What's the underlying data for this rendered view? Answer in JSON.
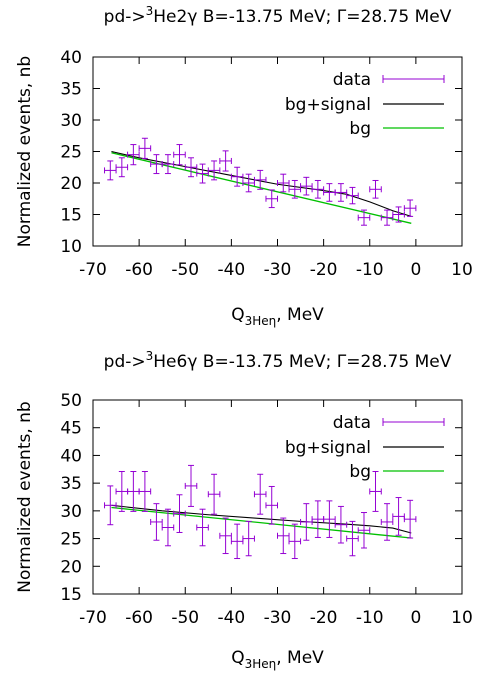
{
  "chart_data": [
    {
      "type": "scatter",
      "title_main": "pd->",
      "title_sup": "3",
      "title_rest": "He2γ B=-13.75 MeV; Γ=28.75 MeV",
      "ylabel": "Normalized events, nb",
      "xlabel_main": "Q",
      "xlabel_sub": "3Heη",
      "xlabel_rest": ", MeV",
      "xlim": [
        -70,
        10
      ],
      "ylim": [
        10,
        40
      ],
      "xticks": [
        -70,
        -60,
        -50,
        -40,
        -30,
        -20,
        -10,
        0,
        10
      ],
      "yticks": [
        10,
        15,
        20,
        25,
        30,
        35,
        40
      ],
      "legend": [
        "data",
        "bg+signal",
        "bg"
      ],
      "colors": {
        "data": "#9400d3",
        "signal": "#000000",
        "bg": "#00c000"
      },
      "x_error": 1.25,
      "data": {
        "x": [
          -66.25,
          -63.75,
          -61.25,
          -58.75,
          -56.25,
          -53.75,
          -51.25,
          -48.75,
          -46.25,
          -43.75,
          -41.25,
          -38.75,
          -36.25,
          -33.75,
          -31.25,
          -28.75,
          -26.25,
          -23.75,
          -21.25,
          -18.75,
          -16.25,
          -13.75,
          -11.25,
          -8.75,
          -6.25,
          -3.75,
          -1.25
        ],
        "y": [
          22.0,
          22.5,
          24.5,
          25.5,
          23.0,
          23.0,
          24.5,
          22.5,
          21.5,
          22.0,
          23.5,
          21.0,
          20.0,
          20.5,
          17.5,
          20.0,
          19.0,
          19.5,
          19.0,
          18.5,
          18.5,
          18.0,
          14.5,
          19.0,
          14.5,
          15.0,
          16.0
        ],
        "yerr": [
          1.5,
          1.5,
          1.6,
          1.6,
          1.5,
          1.5,
          1.6,
          1.5,
          1.5,
          1.5,
          1.6,
          1.5,
          1.4,
          1.5,
          1.4,
          1.4,
          1.4,
          1.4,
          1.4,
          1.4,
          1.4,
          1.3,
          1.2,
          1.4,
          1.2,
          1.2,
          1.3
        ]
      },
      "signal": {
        "x": [
          -66,
          -60,
          -50,
          -40,
          -30,
          -20,
          -15,
          -10,
          -5,
          -1
        ],
        "y": [
          25.0,
          24.0,
          22.6,
          21.2,
          19.8,
          18.8,
          18.2,
          17.0,
          15.6,
          14.7
        ]
      },
      "bg": {
        "x": [
          -66,
          -1
        ],
        "y": [
          24.8,
          13.6
        ]
      }
    },
    {
      "type": "scatter",
      "title_main": "pd->",
      "title_sup": "3",
      "title_rest": "He6γ B=-13.75 MeV; Γ=28.75 MeV",
      "ylabel": "Normalized events, nb",
      "xlabel_main": "Q",
      "xlabel_sub": "3Heη",
      "xlabel_rest": ", MeV",
      "xlim": [
        -70,
        10
      ],
      "ylim": [
        15,
        50
      ],
      "xticks": [
        -70,
        -60,
        -50,
        -40,
        -30,
        -20,
        -10,
        0,
        10
      ],
      "yticks": [
        15,
        20,
        25,
        30,
        35,
        40,
        45,
        50
      ],
      "legend": [
        "data",
        "bg+signal",
        "bg"
      ],
      "colors": {
        "data": "#9400d3",
        "signal": "#000000",
        "bg": "#00c000"
      },
      "x_error": 1.25,
      "data": {
        "x": [
          -66.25,
          -63.75,
          -61.25,
          -58.75,
          -56.25,
          -53.75,
          -51.25,
          -48.75,
          -46.25,
          -43.75,
          -41.25,
          -38.75,
          -36.25,
          -33.75,
          -31.25,
          -28.75,
          -26.25,
          -23.75,
          -21.25,
          -18.75,
          -16.25,
          -13.75,
          -11.25,
          -8.75,
          -6.25,
          -3.75,
          -1.25
        ],
        "y": [
          31.0,
          33.5,
          33.5,
          33.5,
          28.0,
          27.0,
          29.5,
          34.5,
          27.0,
          33.0,
          25.5,
          24.5,
          25.0,
          33.0,
          31.0,
          25.5,
          24.5,
          28.0,
          28.5,
          28.5,
          27.5,
          25.0,
          26.5,
          33.5,
          28.0,
          29.0,
          28.5
        ],
        "yerr": [
          3.5,
          3.6,
          3.6,
          3.6,
          3.3,
          3.3,
          3.4,
          3.7,
          3.3,
          3.6,
          3.2,
          3.1,
          3.1,
          3.6,
          3.4,
          3.2,
          3.1,
          3.3,
          3.3,
          3.3,
          3.3,
          3.1,
          3.2,
          3.6,
          3.3,
          3.4,
          3.4
        ]
      },
      "signal": {
        "x": [
          -66,
          -55,
          -45,
          -35,
          -25,
          -15,
          -10,
          -5,
          -1
        ],
        "y": [
          31.0,
          30.0,
          29.3,
          28.7,
          28.1,
          27.6,
          27.3,
          26.9,
          26.0
        ]
      },
      "bg": {
        "x": [
          -66,
          -1
        ],
        "y": [
          30.6,
          25.1
        ]
      }
    }
  ]
}
